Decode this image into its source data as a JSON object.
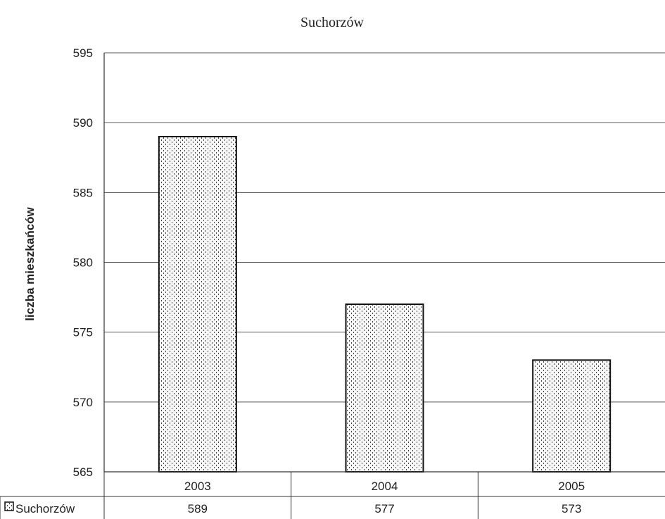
{
  "chart_data": {
    "type": "bar",
    "title": "Suchorzów",
    "xlabel": "",
    "ylabel": "liczba mieszkańców",
    "categories": [
      "2003",
      "2004",
      "2005"
    ],
    "series": [
      {
        "name": "Suchorzów",
        "values": [
          589,
          577,
          573
        ]
      }
    ],
    "ylim": [
      565,
      595
    ],
    "yticks": [
      565,
      570,
      575,
      580,
      585,
      590,
      595
    ],
    "grid": true,
    "legend": "data table below x-axis",
    "data_table": true,
    "bar_fill": "dotted pattern",
    "colors": {
      "axis": "#333333",
      "grid": "#555555",
      "bar_stroke": "#111111"
    }
  }
}
